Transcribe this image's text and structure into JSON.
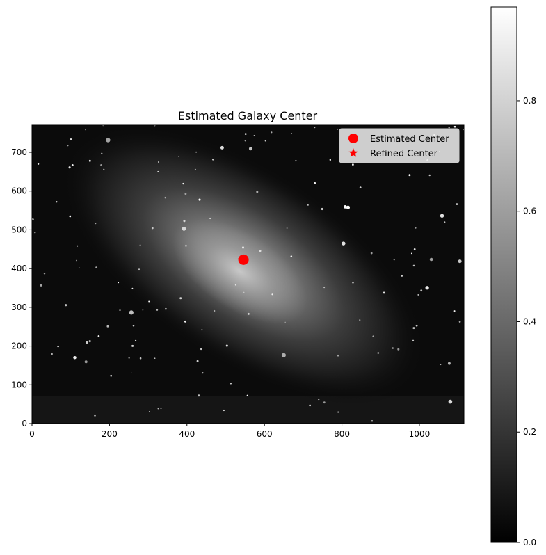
{
  "chart_data": [
    {
      "type": "scatter",
      "title": "Estimated Galaxy Center",
      "xlabel": "",
      "ylabel": "",
      "xlim": [
        0,
        1115
      ],
      "ylim": [
        0,
        770
      ],
      "xticks": [
        0,
        200,
        400,
        600,
        800,
        1000
      ],
      "yticks": [
        0,
        100,
        200,
        300,
        400,
        500,
        600,
        700
      ],
      "background": "grayscale galaxy image",
      "legend_position": "top-right",
      "series": [
        {
          "name": "Estimated Center",
          "marker": "circle",
          "color": "#ff0000",
          "x": [
            546
          ],
          "y": [
            423
          ]
        },
        {
          "name": "Refined Center",
          "marker": "star",
          "color": "#ff0000",
          "x": [
            544
          ],
          "y": [
            422
          ]
        }
      ]
    },
    {
      "type": "colorbar",
      "colormap": "gray",
      "vmin": 0.0,
      "vmax": 0.97,
      "ticks": [
        0.0,
        0.2,
        0.4,
        0.6,
        0.8
      ]
    }
  ],
  "legend": {
    "items": [
      {
        "label": "Estimated Center",
        "marker": "circle",
        "color": "#ff0000"
      },
      {
        "label": "Refined Center",
        "marker": "star",
        "color": "#ff0000"
      }
    ]
  }
}
